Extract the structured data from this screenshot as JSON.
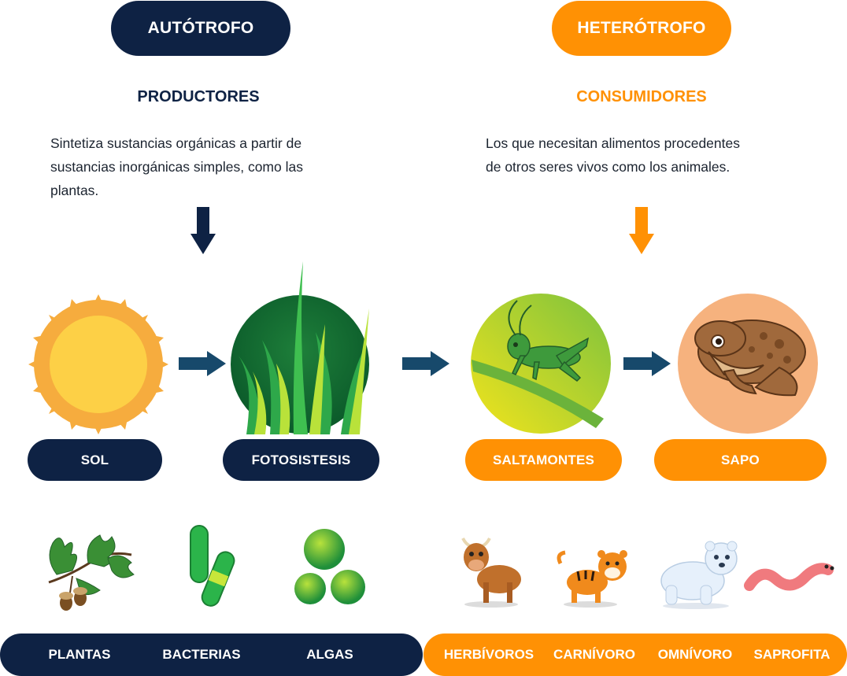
{
  "left": {
    "header": "AUTÓTROFO",
    "title": "PRODUCTORES",
    "description_lines": [
      "Sintetiza sustancias orgánicas a partir de",
      "sustancias inorgánicas simples, como las",
      "plantas."
    ],
    "chain": [
      "SOL",
      "FOTOSISTESIS"
    ],
    "examples": [
      "PLANTAS",
      "BACTERIAS",
      "ALGAS"
    ]
  },
  "right": {
    "header": "HETERÓTROFO",
    "title": "CONSUMIDORES",
    "description_lines": [
      "Los que necesitan alimentos procedentes",
      "de otros seres vivos como los animales."
    ],
    "chain": [
      "SALTAMONTES",
      "SAPO"
    ],
    "examples": [
      "HERBÍVOROS",
      "CARNÍVORO",
      "OMNÍVORO",
      "SAPROFITA"
    ]
  },
  "colors": {
    "navy": "#0e2244",
    "orange": "#ff9104",
    "arrow_blue": "#17496b"
  },
  "icons": [
    "sun-icon",
    "grass-icon",
    "grasshopper-icon",
    "toad-icon",
    "oak-leaves-icon",
    "bacteria-icon",
    "algae-icon",
    "bull-icon",
    "tiger-icon",
    "polar-bear-icon",
    "worm-icon"
  ]
}
